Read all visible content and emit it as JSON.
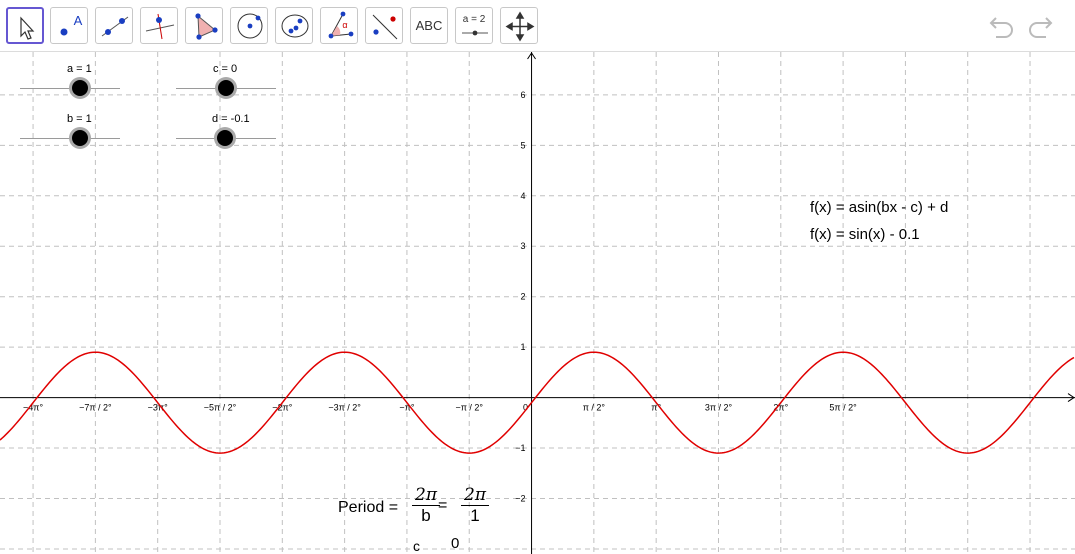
{
  "toolbar": {
    "tools": [
      {
        "name": "move-tool",
        "label": ""
      },
      {
        "name": "point-tool",
        "label": "A"
      },
      {
        "name": "line-tool",
        "label": ""
      },
      {
        "name": "perpendicular-tool",
        "label": ""
      },
      {
        "name": "polygon-tool",
        "label": ""
      },
      {
        "name": "circle-tool",
        "label": ""
      },
      {
        "name": "conic-tool",
        "label": ""
      },
      {
        "name": "angle-tool",
        "label": "α"
      },
      {
        "name": "reflect-tool",
        "label": ""
      },
      {
        "name": "text-tool",
        "label": "ABC"
      },
      {
        "name": "slider-tool",
        "label": "a = 2"
      },
      {
        "name": "move-graphics-view-tool",
        "label": ""
      }
    ],
    "undo_icon": "undo-icon",
    "redo_icon": "redo-icon"
  },
  "sliders": {
    "a": {
      "label": "a = 1",
      "value": 1,
      "min": -5,
      "max": 5
    },
    "c": {
      "label": "c = 0",
      "value": 0,
      "min": -5,
      "max": 5
    },
    "b": {
      "label": "b = 1",
      "value": 1,
      "min": -5,
      "max": 5
    },
    "d": {
      "label": "d = -0.1",
      "value": -0.1,
      "min": -5,
      "max": 5
    }
  },
  "formulas": {
    "general": "f(x) = asin(bx - c) + d",
    "current": "f(x) = sin(x) - 0.1"
  },
  "period": {
    "label": "Period =",
    "frac1_num": "2π",
    "frac1_den": "b",
    "equals": "=",
    "frac2_num": "2π",
    "frac2_den": "1",
    "extra_label": "c",
    "extra_value": "0"
  },
  "chart_data": {
    "type": "line",
    "x_tick_labels": [
      "−4π°",
      "−7π / 2°",
      "−3π°",
      "−5π / 2°",
      "−2π°",
      "−3π / 2°",
      "−π°",
      "−π / 2°",
      "0",
      "π / 2°",
      "π°",
      "3π / 2°",
      "2π°",
      "5π / 2°"
    ],
    "y_tick_labels": [
      "−2",
      "−1",
      "1",
      "2",
      "3",
      "4",
      "5",
      "6"
    ],
    "xlim": [
      -13.4,
      13.7
    ],
    "ylim": [
      -3.1,
      6.85
    ],
    "function": {
      "a": 1,
      "b": 1,
      "c": 0,
      "d": -0.1
    },
    "colors": {
      "curve": "#e00000",
      "grid": "#c0c0c0",
      "axis": "#000000"
    },
    "grid": true
  }
}
